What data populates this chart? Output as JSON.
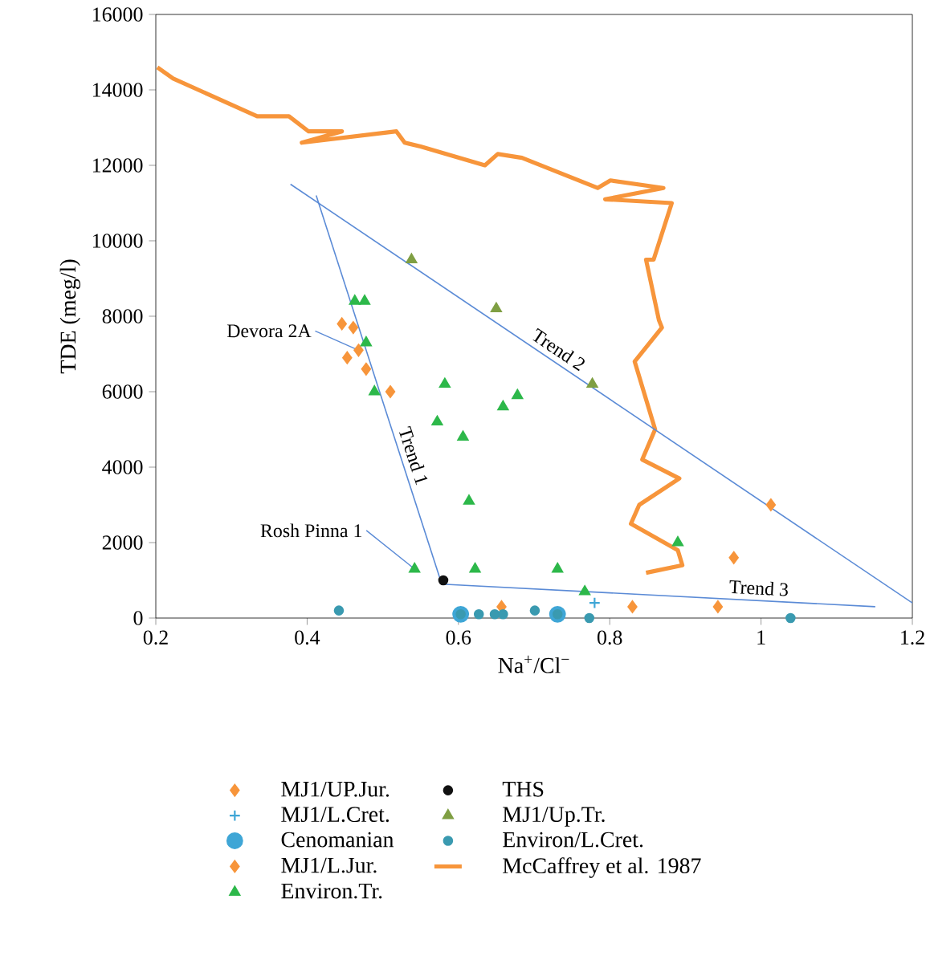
{
  "chart_data": {
    "type": "scatter",
    "xlabel": "Na$^{+}$/Cl$^{−}$",
    "ylabel": "TDE (meg/l)",
    "xlim": [
      0.2,
      1.2
    ],
    "xticks": [
      0.2,
      0.4,
      0.6,
      0.8,
      1,
      1.2
    ],
    "ylim": [
      0,
      16000
    ],
    "yticks": [
      0,
      2000,
      4000,
      6000,
      8000,
      10000,
      12000,
      14000,
      16000
    ],
    "grid": false,
    "legend": "bottom",
    "series": [
      {
        "name": "MJ1/UP.Jur.",
        "marker": "diamond",
        "color": "#f7953b",
        "x": [
          1.013,
          0.964,
          0.83,
          0.943,
          0.657
        ],
        "values": [
          3000,
          1600,
          300,
          300,
          300
        ]
      },
      {
        "name": "MJ1/L.Cret.",
        "marker": "cross",
        "color": "#3fa6d6",
        "x": [
          0.78
        ],
        "values": [
          400
        ]
      },
      {
        "name": "Cenomanian",
        "marker": "circle",
        "color": "#3fa6d6",
        "x": [
          0.603,
          0.731
        ],
        "values": [
          100,
          100
        ]
      },
      {
        "name": "MJ1/L.Jur.",
        "marker": "diamond",
        "color": "#f7953b",
        "x": [
          0.446,
          0.461,
          0.468,
          0.453,
          0.478,
          0.51
        ],
        "values": [
          7800,
          7700,
          7100,
          6900,
          6600,
          6000
        ]
      },
      {
        "name": "Environ.Tr.",
        "marker": "triangle",
        "color": "#2db84a",
        "x": [
          0.463,
          0.476,
          0.478,
          0.489,
          0.582,
          0.572,
          0.606,
          0.678,
          0.659,
          0.614,
          0.542,
          0.622,
          0.731,
          0.767,
          0.89
        ],
        "values": [
          8400,
          8400,
          7300,
          6000,
          6200,
          5200,
          4800,
          5900,
          5600,
          3100,
          1300,
          1300,
          1300,
          700,
          2000
        ]
      },
      {
        "name": "THS",
        "marker": "circle",
        "color": "#111111",
        "x": [
          0.58
        ],
        "values": [
          1000
        ]
      },
      {
        "name": "MJ1/Up.Tr.",
        "marker": "triangle",
        "color": "#7f9f43",
        "x": [
          0.538,
          0.65,
          0.777
        ],
        "values": [
          9500,
          8200,
          6200
        ]
      },
      {
        "name": "Environ/L.Cret.",
        "marker": "circle",
        "color": "#3a9ab0",
        "x": [
          0.442,
          0.603,
          0.627,
          0.648,
          0.659,
          0.701,
          0.731,
          0.773,
          1.039
        ],
        "values": [
          200,
          100,
          100,
          100,
          100,
          200,
          100,
          0,
          0
        ]
      },
      {
        "name": "McCaffrey et al. 1987",
        "type": "line",
        "marker": "none",
        "color": "#f7953b",
        "x": [
          0.202,
          0.223,
          0.334,
          0.376,
          0.402,
          0.446,
          0.393,
          0.518,
          0.529,
          0.55,
          0.635,
          0.652,
          0.684,
          0.784,
          0.801,
          0.871,
          0.794,
          0.882,
          0.858,
          0.848,
          0.865,
          0.869,
          0.833,
          0.86,
          0.843,
          0.892,
          0.839,
          0.828,
          0.89,
          0.896,
          0.848
        ],
        "values": [
          14600,
          14300,
          13300,
          13300,
          12900,
          12900,
          12600,
          12900,
          12600,
          12500,
          12000,
          12300,
          12200,
          11400,
          11600,
          11400,
          11100,
          11000,
          9500,
          9500,
          7900,
          7700,
          6800,
          5000,
          4200,
          3700,
          3000,
          2500,
          1800,
          1400,
          1200
        ]
      },
      {
        "name": "Trend 1",
        "type": "line",
        "marker": "none",
        "color": "#5b8bd6",
        "x": [
          0.412,
          0.578
        ],
        "values": [
          11200,
          900
        ]
      },
      {
        "name": "Trend 2",
        "type": "line",
        "marker": "none",
        "color": "#5b8bd6",
        "x": [
          0.378,
          1.2
        ],
        "values": [
          11500,
          400
        ]
      },
      {
        "name": "Trend 3",
        "type": "line",
        "marker": "none",
        "color": "#5b8bd6",
        "x": [
          0.578,
          1.151
        ],
        "values": [
          900,
          300
        ]
      }
    ],
    "annotations": [
      {
        "text": "Devora 2A",
        "x": 0.468,
        "y": 7100
      },
      {
        "text": "Rosh Pinna 1",
        "x": 0.542,
        "y": 1300
      }
    ]
  }
}
